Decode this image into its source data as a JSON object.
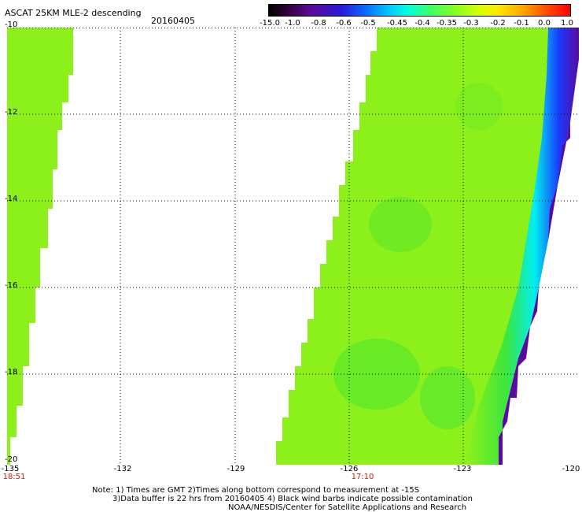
{
  "header": {
    "title": "ASCAT 25KM MLE-2 descending",
    "date": "20160405"
  },
  "colorbar": {
    "labels": [
      "-15.0",
      "-1.0",
      "-0.8",
      "-0.6",
      "-0.5",
      "-0.45",
      "-0.4",
      "-0.35",
      "-0.3",
      "-0.2",
      "-0.1",
      "0.0",
      "1.0"
    ]
  },
  "axes": {
    "x_ticks": [
      "-135",
      "-132",
      "-129",
      "-126",
      "-123",
      "-120"
    ],
    "y_ticks": [
      "-10",
      "-12",
      "-14",
      "-16",
      "-18",
      "-20"
    ],
    "lon_range": [
      -135,
      -120
    ],
    "lat_range": [
      -20,
      -10
    ]
  },
  "times": {
    "t1": "18:51",
    "t2": "17:10"
  },
  "notes": {
    "line1": "Note: 1) Times are GMT 2)Times along bottom correspond to measurement at -15S",
    "line2": "3)Data buffer is 22 hrs from 20160405 4) Black wind barbs indicate possible contamination",
    "line3": "NOAA/NESDIS/Center for Satellite Applications and Research"
  },
  "colors": {
    "swath_main": "#8cf01a",
    "swath_green": "#3ce63c",
    "edge_cyan": "#00f0f0",
    "edge_blue": "#1a3cff",
    "edge_purple": "#5a0aa0",
    "time_red": "#d01a10"
  }
}
